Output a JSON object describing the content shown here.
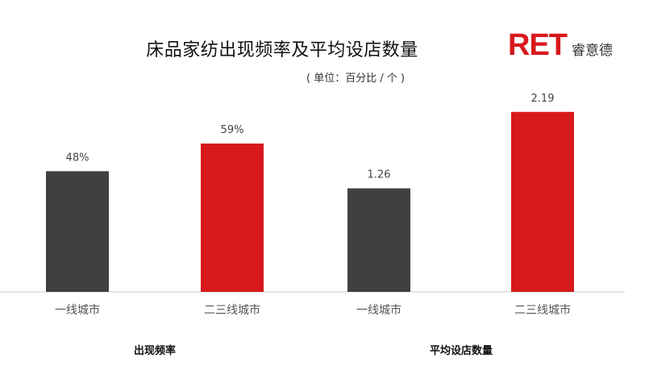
{
  "header": {
    "title": "床品家纺出现频率及平均设店数量",
    "unit": "( 单位：百分比 / 个 )",
    "logo_mark": "RET",
    "logo_name": "睿意德"
  },
  "colors": {
    "dark": "#404040",
    "red": "#d7191c",
    "axis": "#c8c8c8"
  },
  "chart_data": [
    {
      "type": "bar",
      "group_label": "出现频率",
      "categories": [
        "一线城市",
        "二三线城市"
      ],
      "values": [
        48,
        59
      ],
      "value_labels": [
        "48%",
        "59%"
      ],
      "bar_colors": [
        "#404040",
        "#d7191c"
      ],
      "ylim": [
        0,
        85
      ]
    },
    {
      "type": "bar",
      "group_label": "平均设店数量",
      "categories": [
        "一线城市",
        "二三线城市"
      ],
      "values": [
        1.26,
        2.19
      ],
      "value_labels": [
        "1.26",
        "2.19"
      ],
      "bar_colors": [
        "#404040",
        "#d7191c"
      ],
      "ylim": [
        0,
        2.6
      ]
    }
  ]
}
